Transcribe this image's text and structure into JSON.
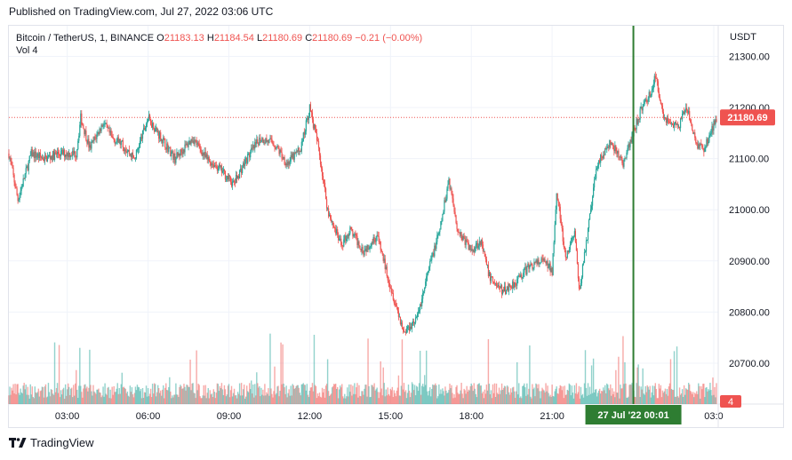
{
  "published": "Published on TradingView.com, Jul 27, 2022 03:06 UTC",
  "legend": {
    "symbol": "Bitcoin / TetherUS, 1, BINANCE",
    "open_key": "O",
    "open": "21183.13",
    "high_key": "H",
    "high": "21184.54",
    "low_key": "L",
    "low": "21180.69",
    "close_key": "C",
    "close": "21180.69",
    "change": "−0.21 (−0.00%)",
    "vol_label": "Vol",
    "vol_value": "4"
  },
  "price_axis": {
    "currency": "USDT",
    "ticks": [
      "21300.00",
      "21200.00",
      "21100.00",
      "21000.00",
      "20900.00",
      "20800.00",
      "20700.00"
    ],
    "last_price": "21180.69",
    "vol_badge": "4"
  },
  "time_axis": {
    "ticks": [
      "03:00",
      "06:00",
      "09:00",
      "12:00",
      "15:00",
      "18:00",
      "21:00",
      "03:0"
    ],
    "crosshair_label": "27 Jul '22   00:01"
  },
  "colors": {
    "up": "#26a69a",
    "down": "#ef5350",
    "crosshair": "#2e7d32",
    "grid": "#f0f3fa"
  },
  "footer": {
    "brand": "TradingView"
  },
  "chart_data": {
    "type": "candlestick",
    "symbol": "Bitcoin / TetherUS",
    "interval": "1",
    "exchange": "BINANCE",
    "y_unit": "USDT",
    "ylim": [
      20620,
      21360
    ],
    "x_start": "00:50",
    "x_end": "03:06",
    "close_path": [
      [
        "00:50",
        21110
      ],
      [
        "01:10",
        21020
      ],
      [
        "01:40",
        21110
      ],
      [
        "02:10",
        21100
      ],
      [
        "02:40",
        21110
      ],
      [
        "03:20",
        21110
      ],
      [
        "03:30",
        21180
      ],
      [
        "03:50",
        21120
      ],
      [
        "04:20",
        21170
      ],
      [
        "04:40",
        21140
      ],
      [
        "05:00",
        21130
      ],
      [
        "05:30",
        21100
      ],
      [
        "06:00",
        21180
      ],
      [
        "06:30",
        21140
      ],
      [
        "07:00",
        21100
      ],
      [
        "07:40",
        21140
      ],
      [
        "08:10",
        21100
      ],
      [
        "08:40",
        21080
      ],
      [
        "09:10",
        21050
      ],
      [
        "09:40",
        21100
      ],
      [
        "10:10",
        21140
      ],
      [
        "10:40",
        21130
      ],
      [
        "11:10",
        21090
      ],
      [
        "11:40",
        21120
      ],
      [
        "12:00",
        21200
      ],
      [
        "12:20",
        21120
      ],
      [
        "12:40",
        21000
      ],
      [
        "13:10",
        20930
      ],
      [
        "13:30",
        20960
      ],
      [
        "14:00",
        20920
      ],
      [
        "14:30",
        20950
      ],
      [
        "15:00",
        20850
      ],
      [
        "15:30",
        20760
      ],
      [
        "16:00",
        20790
      ],
      [
        "16:30",
        20900
      ],
      [
        "16:50",
        20960
      ],
      [
        "17:10",
        21060
      ],
      [
        "17:30",
        20960
      ],
      [
        "18:00",
        20920
      ],
      [
        "18:20",
        20940
      ],
      [
        "18:40",
        20870
      ],
      [
        "19:10",
        20840
      ],
      [
        "19:40",
        20860
      ],
      [
        "20:10",
        20890
      ],
      [
        "20:40",
        20900
      ],
      [
        "21:00",
        20880
      ],
      [
        "21:10",
        21040
      ],
      [
        "21:30",
        20900
      ],
      [
        "21:50",
        20960
      ],
      [
        "22:00",
        20840
      ],
      [
        "22:20",
        20960
      ],
      [
        "22:40",
        21090
      ],
      [
        "23:10",
        21130
      ],
      [
        "23:40",
        21090
      ],
      [
        "00:00",
        21150
      ],
      [
        "00:20",
        21200
      ],
      [
        "00:40",
        21230
      ],
      [
        "00:50",
        21260
      ],
      [
        "01:10",
        21180
      ],
      [
        "01:40",
        21160
      ],
      [
        "02:00",
        21200
      ],
      [
        "02:20",
        21130
      ],
      [
        "02:40",
        21120
      ],
      [
        "03:06",
        21180.69
      ]
    ],
    "crosshair_x": "27 Jul '22 00:01",
    "last_price": 21180.69,
    "volume_last": 4
  }
}
